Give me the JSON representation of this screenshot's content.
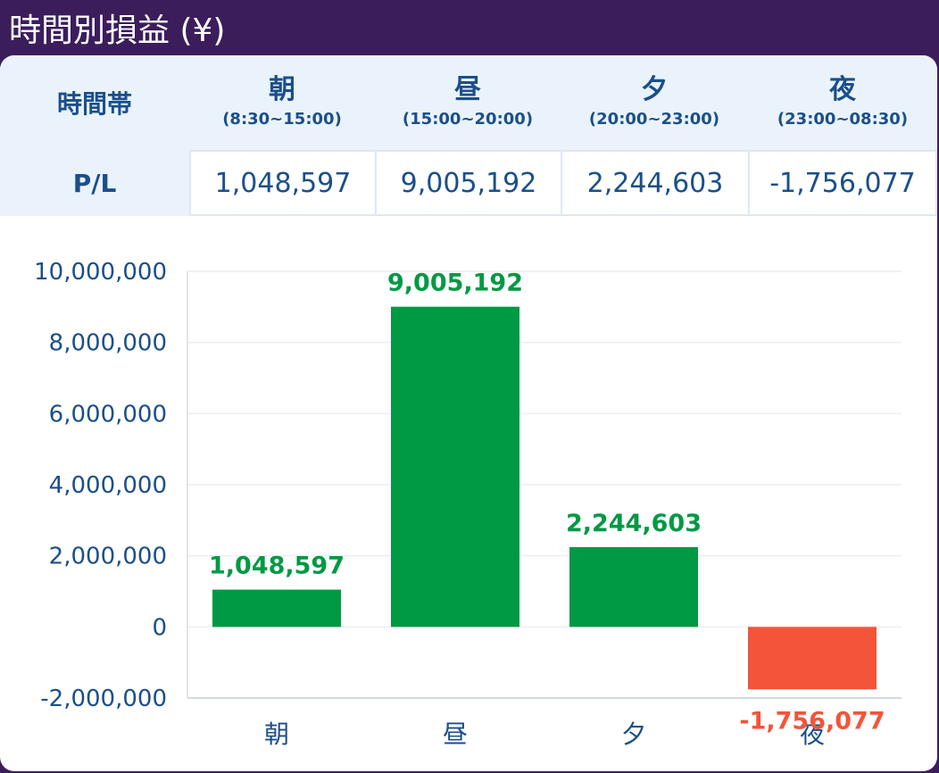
{
  "title": "時間別損益 (¥)",
  "table": {
    "header_label": "時間帯",
    "row_label": "P/L",
    "columns": [
      {
        "name": "朝",
        "range": "(8:30~15:00)",
        "value": "1,048,597"
      },
      {
        "name": "昼",
        "range": "(15:00~20:00)",
        "value": "9,005,192"
      },
      {
        "name": "夕",
        "range": "(20:00~23:00)",
        "value": "2,244,603"
      },
      {
        "name": "夜",
        "range": "(23:00~08:30)",
        "value": "-1,756,077"
      }
    ]
  },
  "colors": {
    "positive": "#009944",
    "negative": "#f4543a",
    "axis_text": "#1b4f8a"
  },
  "chart_data": {
    "type": "bar",
    "categories": [
      "朝",
      "昼",
      "夕",
      "夜"
    ],
    "values": [
      1048597,
      9005192,
      2244603,
      -1756077
    ],
    "data_labels": [
      "1,048,597",
      "9,005,192",
      "2,244,603",
      "-1,756,077"
    ],
    "yticks": [
      10000000,
      8000000,
      6000000,
      4000000,
      2000000,
      0,
      -2000000
    ],
    "ytick_labels": [
      "10,000,000",
      "8,000,000",
      "6,000,000",
      "4,000,000",
      "2,000,000",
      "0",
      "-2,000,000"
    ],
    "ylim": [
      -2000000,
      10000000
    ],
    "grid": true,
    "title": "",
    "xlabel": "",
    "ylabel": ""
  }
}
